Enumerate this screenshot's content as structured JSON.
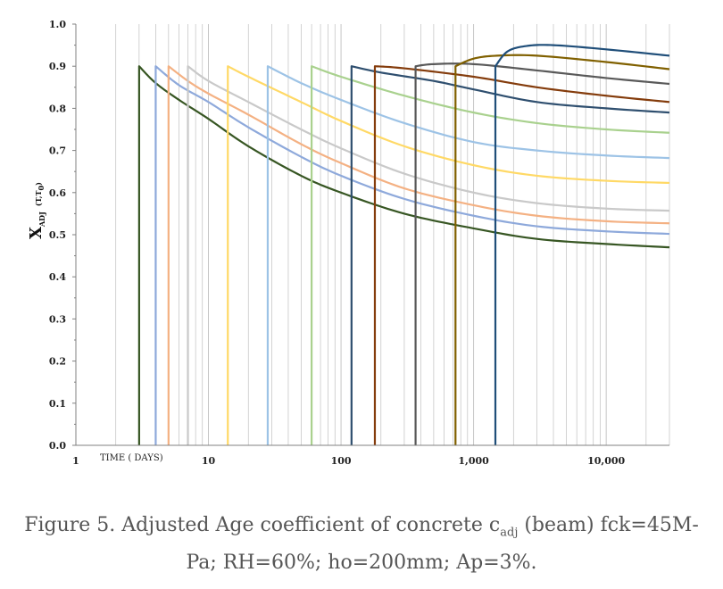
{
  "chart_data": {
    "type": "line",
    "title": "",
    "xlabel": "TIME ( DAYS)",
    "ylabel": "X",
    "ylabel_sub": "ADJ",
    "ylabel_paren": "(T,T",
    "ylabel_paren_sub": "0",
    "ylabel_paren_end": ")",
    "x_scale": "log",
    "xlim": [
      1,
      30000
    ],
    "ylim": [
      0,
      1.0
    ],
    "grid": "vertical log grid lines only",
    "x_tick_labels": [
      "1",
      "10",
      "100",
      "1,000",
      "10,000"
    ],
    "x_tick_values": [
      1,
      10,
      100,
      1000,
      10000
    ],
    "y_tick_labels": [
      "0.0",
      "0.1",
      "0.2",
      "0.3",
      "0.4",
      "0.5",
      "0.6",
      "0.7",
      "0.8",
      "0.9",
      "1.0"
    ],
    "y_tick_values": [
      0,
      0.1,
      0.2,
      0.3,
      0.4,
      0.5,
      0.6,
      0.7,
      0.8,
      0.9,
      1.0
    ],
    "series": [
      {
        "color": "#375623",
        "t0": 3,
        "points": [
          [
            3,
            0.9
          ],
          [
            4,
            0.86
          ],
          [
            6,
            0.82
          ],
          [
            10,
            0.775
          ],
          [
            20,
            0.71
          ],
          [
            50,
            0.64
          ],
          [
            100,
            0.6
          ],
          [
            300,
            0.55
          ],
          [
            1000,
            0.515
          ],
          [
            3000,
            0.49
          ],
          [
            10000,
            0.478
          ],
          [
            30000,
            0.47
          ]
        ]
      },
      {
        "color": "#8EA9DB",
        "t0": 4,
        "points": [
          [
            4,
            0.9
          ],
          [
            6,
            0.855
          ],
          [
            10,
            0.815
          ],
          [
            20,
            0.755
          ],
          [
            50,
            0.685
          ],
          [
            100,
            0.64
          ],
          [
            300,
            0.585
          ],
          [
            1000,
            0.545
          ],
          [
            3000,
            0.52
          ],
          [
            10000,
            0.508
          ],
          [
            30000,
            0.502
          ]
        ]
      },
      {
        "color": "#F4B183",
        "t0": 5,
        "points": [
          [
            5,
            0.9
          ],
          [
            7,
            0.865
          ],
          [
            10,
            0.835
          ],
          [
            20,
            0.785
          ],
          [
            50,
            0.715
          ],
          [
            100,
            0.67
          ],
          [
            300,
            0.61
          ],
          [
            1000,
            0.57
          ],
          [
            3000,
            0.545
          ],
          [
            10000,
            0.532
          ],
          [
            30000,
            0.527
          ]
        ]
      },
      {
        "color": "#C9C9C9",
        "t0": 7,
        "points": [
          [
            7,
            0.9
          ],
          [
            10,
            0.865
          ],
          [
            20,
            0.815
          ],
          [
            50,
            0.75
          ],
          [
            100,
            0.705
          ],
          [
            300,
            0.645
          ],
          [
            1000,
            0.6
          ],
          [
            3000,
            0.575
          ],
          [
            10000,
            0.562
          ],
          [
            30000,
            0.557
          ]
        ]
      },
      {
        "color": "#FFD966",
        "t0": 14,
        "points": [
          [
            14,
            0.9
          ],
          [
            20,
            0.875
          ],
          [
            50,
            0.815
          ],
          [
            100,
            0.77
          ],
          [
            300,
            0.71
          ],
          [
            1000,
            0.665
          ],
          [
            3000,
            0.64
          ],
          [
            10000,
            0.628
          ],
          [
            30000,
            0.623
          ]
        ]
      },
      {
        "color": "#9DC3E6",
        "t0": 28,
        "points": [
          [
            28,
            0.9
          ],
          [
            50,
            0.86
          ],
          [
            100,
            0.82
          ],
          [
            300,
            0.765
          ],
          [
            1000,
            0.72
          ],
          [
            3000,
            0.7
          ],
          [
            10000,
            0.688
          ],
          [
            30000,
            0.682
          ]
        ]
      },
      {
        "color": "#A9D18E",
        "t0": 60,
        "points": [
          [
            60,
            0.9
          ],
          [
            100,
            0.875
          ],
          [
            300,
            0.83
          ],
          [
            1000,
            0.79
          ],
          [
            3000,
            0.765
          ],
          [
            10000,
            0.75
          ],
          [
            30000,
            0.742
          ]
        ]
      },
      {
        "color": "#2F4F6F",
        "t0": 120,
        "points": [
          [
            120,
            0.9
          ],
          [
            200,
            0.885
          ],
          [
            500,
            0.865
          ],
          [
            1000,
            0.845
          ],
          [
            3000,
            0.815
          ],
          [
            10000,
            0.8
          ],
          [
            30000,
            0.79
          ]
        ]
      },
      {
        "color": "#843C0C",
        "t0": 180,
        "points": [
          [
            180,
            0.9
          ],
          [
            300,
            0.895
          ],
          [
            1000,
            0.875
          ],
          [
            3000,
            0.85
          ],
          [
            10000,
            0.83
          ],
          [
            30000,
            0.815
          ]
        ]
      },
      {
        "color": "#595959",
        "t0": 365,
        "points": [
          [
            365,
            0.9
          ],
          [
            500,
            0.905
          ],
          [
            1000,
            0.905
          ],
          [
            3000,
            0.89
          ],
          [
            10000,
            0.872
          ],
          [
            30000,
            0.858
          ]
        ]
      },
      {
        "color": "#806000",
        "t0": 730,
        "points": [
          [
            730,
            0.9
          ],
          [
            1000,
            0.918
          ],
          [
            1500,
            0.925
          ],
          [
            3000,
            0.925
          ],
          [
            10000,
            0.91
          ],
          [
            30000,
            0.893
          ]
        ]
      },
      {
        "color": "#1F4E79",
        "t0": 1460,
        "points": [
          [
            1460,
            0.9
          ],
          [
            1800,
            0.935
          ],
          [
            2500,
            0.948
          ],
          [
            4000,
            0.95
          ],
          [
            10000,
            0.94
          ],
          [
            30000,
            0.925
          ]
        ]
      }
    ]
  },
  "caption": {
    "line1_a": "Figure 5. Adjusted Age coefficient of concrete c",
    "line1_sub": "adj",
    "line1_b": " (beam) fck=45M-",
    "line2": "Pa; RH=60%; ho=200mm; Ap=3%."
  }
}
